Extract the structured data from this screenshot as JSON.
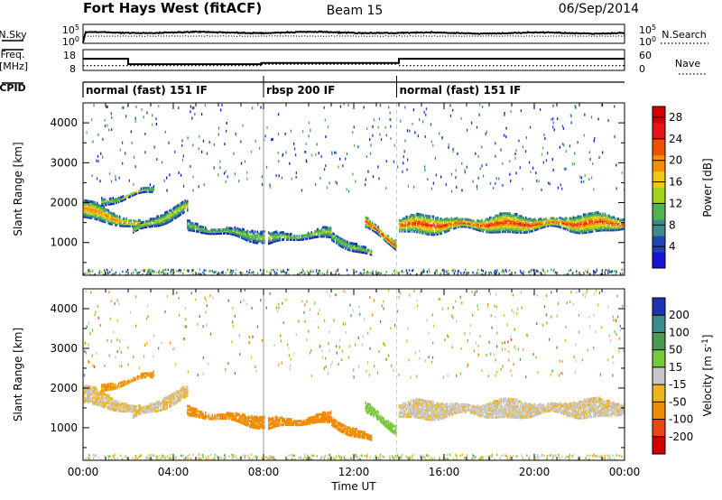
{
  "chart_data": {
    "type": "heatmap",
    "title": {
      "station": "Fort Hays West (fitACF)",
      "beam": "Beam 15",
      "date": "06/Sep/2014"
    },
    "xlabel": "Time UT",
    "x_ticks": [
      "00:00",
      "04:00",
      "08:00",
      "12:00",
      "16:00",
      "20:00",
      "00:00"
    ],
    "x_range_hours": [
      0,
      24
    ],
    "mode_boundaries_hours": [
      8.0,
      13.9
    ],
    "noise_panel": {
      "left_labels": [
        "N.Sky",
        "10^5",
        "10^0"
      ],
      "right_labels": [
        "10^5",
        "10^0",
        "N.Search"
      ]
    },
    "freq_panel": {
      "left_labels": [
        "Freq.",
        "[MHz]",
        "18",
        "8"
      ],
      "right_labels": [
        "60",
        "0",
        "Nave"
      ],
      "freq_steps": [
        {
          "from": 0,
          "to": 2.0,
          "value": 13.6
        },
        {
          "from": 2.0,
          "to": 7.9,
          "value": 11.0
        },
        {
          "from": 7.9,
          "to": 14.0,
          "value": 11.6
        },
        {
          "from": 14.0,
          "to": 24,
          "value": 13.6
        }
      ],
      "nave_steps": [
        {
          "from": 0,
          "to": 7.9,
          "value": 14
        },
        {
          "from": 7.9,
          "to": 14.0,
          "value": 18
        },
        {
          "from": 14.0,
          "to": 24,
          "value": 14
        }
      ]
    },
    "cpid": {
      "label": "CPID",
      "segments": [
        "normal (fast) 151 IF",
        "rbsp 200 IF",
        "normal (fast) 151 IF"
      ]
    },
    "power_panel": {
      "ylabel": "Slant Range [km]",
      "yticks": [
        "4000",
        "3000",
        "2000",
        "1000"
      ],
      "ylim_km": [
        180,
        4500
      ],
      "colorbar_label": "Power [dB]",
      "colorbar_ticks": [
        "28",
        "24",
        "20",
        "16",
        "12",
        "8",
        "4"
      ],
      "colorbar_range_db": [
        0,
        30
      ],
      "colors": [
        "#1414d2",
        "#1e46b4",
        "#3c8a8a",
        "#50b450",
        "#a0d21e",
        "#f0c814",
        "#f58c0a",
        "#f05005",
        "#e61414",
        "#d20000"
      ]
    },
    "velocity_panel": {
      "ylabel": "Slant Range [km]",
      "yticks": [
        "4000",
        "3000",
        "2000",
        "1000"
      ],
      "ylim_km": [
        180,
        4500
      ],
      "colorbar_label": "Velocity [m s^-1]",
      "colorbar_ticks": [
        "200",
        "100",
        "50",
        "15",
        "-15",
        "-50",
        "-100",
        "-200"
      ],
      "colors": [
        "#1e32b4",
        "#3c8c8c",
        "#4c9a50",
        "#78c83c",
        "#c8c8c8",
        "#f0b41e",
        "#f08c0a",
        "#eb4614",
        "#d20000"
      ]
    },
    "echo_regions": [
      {
        "name": "early-band",
        "t0": 0.0,
        "t1": 2.5,
        "r0": 1850,
        "r1": 1420,
        "width": 420,
        "power": 19,
        "velocity": -15
      },
      {
        "name": "early-upper",
        "t0": 0.8,
        "t1": 3.1,
        "r0": 2000,
        "r1": 2350,
        "width": 200,
        "power": 13,
        "velocity": -55
      },
      {
        "name": "early-lower",
        "t0": 2.2,
        "t1": 4.6,
        "r0": 1300,
        "r1": 1900,
        "width": 300,
        "power": 14,
        "velocity": -15
      },
      {
        "name": "pre-dawn",
        "t0": 4.6,
        "t1": 8.0,
        "r0": 1400,
        "r1": 1150,
        "width": 280,
        "power": 12,
        "velocity": -60
      },
      {
        "name": "morning",
        "t0": 8.2,
        "t1": 11.0,
        "r0": 1100,
        "r1": 1250,
        "width": 300,
        "power": 13,
        "velocity": -75
      },
      {
        "name": "late-morning",
        "t0": 11.0,
        "t1": 12.8,
        "r0": 1150,
        "r1": 700,
        "width": 220,
        "power": 12,
        "velocity": -60
      },
      {
        "name": "noon",
        "t0": 12.5,
        "t1": 13.9,
        "r0": 1500,
        "r1": 950,
        "width": 430,
        "power": 22,
        "velocity": 30
      },
      {
        "name": "afternoon",
        "t0": 14.0,
        "t1": 24.0,
        "r0": 1450,
        "r1": 1500,
        "width": 480,
        "power": 22,
        "velocity": -10
      }
    ]
  }
}
